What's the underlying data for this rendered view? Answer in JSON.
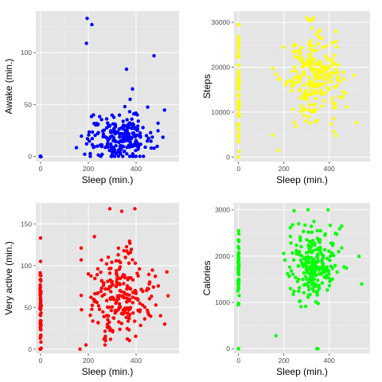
{
  "chart_data": [
    {
      "type": "scatter",
      "title": "",
      "xlabel": "Sleep (min.)",
      "ylabel": "Awake (min.)",
      "color": "#0000ff",
      "xlim": [
        -20,
        580
      ],
      "ylim": [
        -5,
        140
      ],
      "x_ticks": [
        0,
        200,
        400
      ],
      "y_ticks": [
        0,
        50,
        100
      ],
      "grid": true,
      "clusters": [
        {
          "x": [
            0
          ],
          "y": [
            0
          ],
          "n": 6,
          "x_sd": 1,
          "y_sd": 0.3
        },
        {
          "x_mean": 330,
          "x_sd": 70,
          "y_mean": 18,
          "y_sd": 11,
          "n": 230,
          "x_min": 150,
          "x_max": 550,
          "y_min": 0,
          "y_max": 60
        }
      ],
      "x": [
        195,
        215,
        192,
        360,
        385,
        475,
        375,
        405
      ],
      "y": [
        133,
        127,
        109,
        84,
        65,
        97,
        55,
        40
      ]
    },
    {
      "type": "scatter",
      "title": "",
      "xlabel": "Sleep (min.)",
      "ylabel": "Steps",
      "color": "#ffff00",
      "xlim": [
        -20,
        580
      ],
      "ylim": [
        -1000,
        32500
      ],
      "x_ticks": [
        0,
        200,
        400
      ],
      "y_ticks": [
        0,
        10000,
        20000,
        30000
      ],
      "grid": true,
      "clusters": [
        {
          "x_mean": 0,
          "x_sd": 1.5,
          "y_mean": 14000,
          "y_sd": 8000,
          "n": 60,
          "x_min": -3,
          "x_max": 3,
          "y_min": 0,
          "y_max": 29500
        },
        {
          "x_mean": 330,
          "x_sd": 65,
          "y_mean": 17000,
          "y_sd": 4500,
          "n": 230,
          "x_min": 150,
          "x_max": 550,
          "y_min": 1000,
          "y_max": 31000
        }
      ],
      "x": [
        175,
        245,
        310,
        330,
        430
      ],
      "y": [
        1500,
        25000,
        30500,
        31000,
        28000
      ]
    },
    {
      "type": "scatter",
      "title": "",
      "xlabel": "Sleep (min.)",
      "ylabel": "Very active (min.)",
      "color": "#ff0000",
      "xlim": [
        -20,
        580
      ],
      "ylim": [
        -5,
        175
      ],
      "x_ticks": [
        0,
        200,
        400
      ],
      "y_ticks": [
        0,
        50,
        100,
        150
      ],
      "grid": true,
      "clusters": [
        {
          "x_mean": 0,
          "x_sd": 1.5,
          "y_mean": 55,
          "y_sd": 30,
          "n": 60,
          "x_min": -3,
          "x_max": 3,
          "y_min": 0,
          "y_max": 105
        },
        {
          "x_mean": 330,
          "x_sd": 65,
          "y_mean": 65,
          "y_sd": 25,
          "n": 230,
          "x_min": 170,
          "x_max": 550,
          "y_min": 5,
          "y_max": 140
        }
      ],
      "x": [
        0,
        165,
        290,
        340,
        395,
        520
      ],
      "y": [
        133,
        0,
        168,
        165,
        168,
        30
      ]
    },
    {
      "type": "scatter",
      "title": "",
      "xlabel": "Sleep (min.)",
      "ylabel": "Calories",
      "color": "#00ff00",
      "xlim": [
        -20,
        580
      ],
      "ylim": [
        -100,
        3150
      ],
      "x_ticks": [
        0,
        200,
        400
      ],
      "y_ticks": [
        0,
        1000,
        2000,
        3000
      ],
      "grid": true,
      "clusters": [
        {
          "x_mean": 0,
          "x_sd": 1.5,
          "y_mean": 1700,
          "y_sd": 450,
          "n": 55,
          "x_min": -3,
          "x_max": 3,
          "y_min": 950,
          "y_max": 2550
        },
        {
          "x_mean": 330,
          "x_sd": 60,
          "y_mean": 1850,
          "y_sd": 400,
          "n": 230,
          "x_min": 170,
          "x_max": 550,
          "y_min": 400,
          "y_max": 3000
        }
      ],
      "x": [
        0,
        0,
        165,
        245,
        345,
        350,
        395,
        265,
        455
      ],
      "y": [
        0,
        0,
        280,
        2980,
        0,
        0,
        3000,
        2700,
        2650
      ]
    }
  ]
}
